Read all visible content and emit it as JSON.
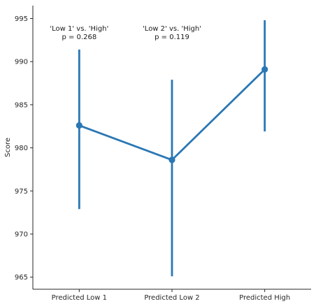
{
  "chart_data": {
    "type": "line",
    "title": "",
    "xlabel": "",
    "ylabel": "Score",
    "categories": [
      "Predicted Low 1",
      "Predicted Low 2",
      "Predicted High"
    ],
    "values": [
      982.6,
      978.6,
      989.1
    ],
    "error_bars": [
      {
        "low": 972.9,
        "high": 991.4
      },
      {
        "low": 965.1,
        "high": 987.9
      },
      {
        "low": 981.9,
        "high": 994.8
      }
    ],
    "ylim": [
      963.6,
      996.5
    ],
    "yticks": [
      965,
      970,
      975,
      980,
      985,
      990,
      995
    ],
    "grid": false,
    "color": "#2a77b4",
    "annotations": [
      {
        "lines": [
          "'Low 1' vs. 'High'",
          "p = 0.268"
        ],
        "category_index": 0
      },
      {
        "lines": [
          "'Low 2' vs. 'High'",
          "p = 0.119"
        ],
        "category_index": 1
      }
    ]
  }
}
